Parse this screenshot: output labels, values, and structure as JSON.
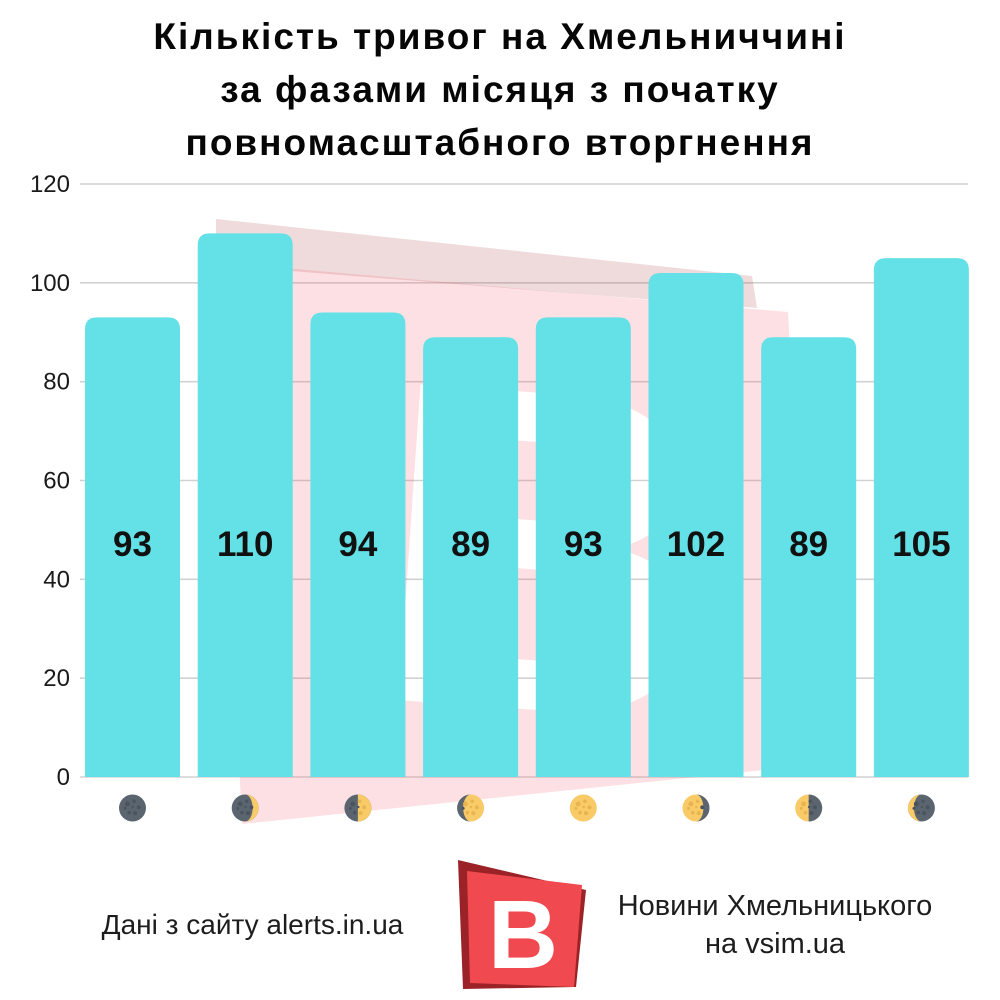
{
  "title": {
    "full": "Кількість тривог на Хмельниччині за фазами місяця з початку повномасштабного вторгнення",
    "lines": [
      "Кількість тривог на Хмельниччині",
      "за фазами місяця з початку",
      "повномасштабного вторгнення"
    ]
  },
  "chart_data": {
    "type": "bar",
    "categories": [
      "new-moon",
      "waxing-crescent",
      "first-quarter",
      "waxing-gibbous",
      "full-moon",
      "waning-gibbous",
      "last-quarter",
      "waning-crescent"
    ],
    "values": [
      93,
      110,
      94,
      89,
      93,
      102,
      89,
      105
    ],
    "title": "Кількість тривог на Хмельниччині за фазами місяця з початку повномасштабного вторгнення",
    "xlabel": "",
    "ylabel": "",
    "ylim": [
      0,
      120
    ],
    "yticks": [
      0,
      20,
      40,
      60,
      80,
      100,
      120
    ],
    "grid": true,
    "legend": null,
    "x_axis_icons": "moon-phases"
  },
  "colors": {
    "bar": "#63E1E7",
    "bar_label": "#111111",
    "grid": "#d2d2d2",
    "tick": "#1a1a1a",
    "moon_dark": "#5B6570",
    "moon_dark_crater": "#4A535E",
    "moon_light": "#F9CA68",
    "moon_light_crater": "#E8B44F",
    "logo_red": "#F0494F",
    "logo_dark_red": "#9B2227",
    "watermark_front": "rgba(242,72,95,0.17)",
    "watermark_back": "rgba(156,34,39,0.165)"
  },
  "footer": {
    "source": "Дані з сайту alerts.in.ua",
    "brand_line1": "Новини Хмельницького",
    "brand_line2": "на vsim.ua",
    "logo_letter": "В"
  }
}
